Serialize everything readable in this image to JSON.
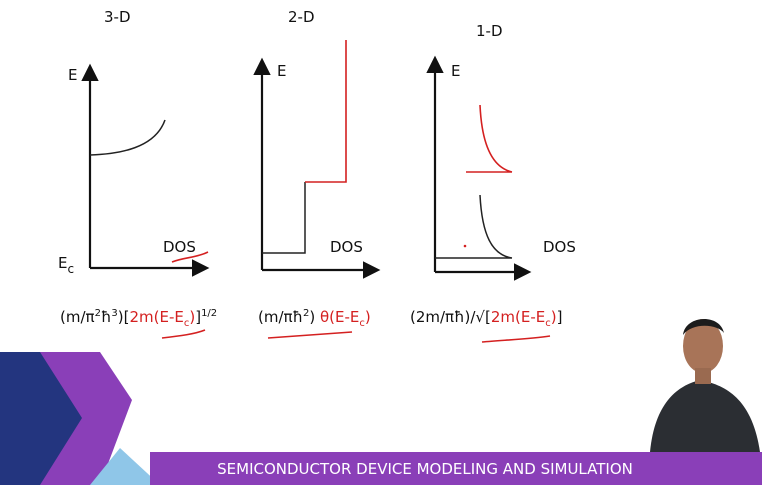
{
  "panels": [
    {
      "title": "3-D",
      "y_label": "E",
      "origin_label": {
        "main": "E",
        "sub": "c"
      },
      "x_label": "DOS",
      "formula": [
        {
          "text": "(m/π",
          "style": "black"
        },
        {
          "text": "2",
          "style": "sup"
        },
        {
          "text": "ħ",
          "style": "black"
        },
        {
          "text": "3",
          "style": "sup"
        },
        {
          "text": ")[",
          "style": "black"
        },
        {
          "text": "2m(E-E",
          "style": "red"
        },
        {
          "text": "c",
          "style": "red-sub"
        },
        {
          "text": ")",
          "style": "red"
        },
        {
          "text": "]",
          "style": "black"
        },
        {
          "text": "1/2",
          "style": "sup"
        }
      ]
    },
    {
      "title": "2-D",
      "y_label": "E",
      "x_label": "DOS",
      "formula": [
        {
          "text": "(m/πħ",
          "style": "black"
        },
        {
          "text": "2",
          "style": "sup"
        },
        {
          "text": ") ",
          "style": "black"
        },
        {
          "text": "θ(E-E",
          "style": "red"
        },
        {
          "text": "c",
          "style": "red-sub"
        },
        {
          "text": ")",
          "style": "red"
        }
      ]
    },
    {
      "title": "1-D",
      "y_label": "E",
      "x_label": "DOS",
      "formula": [
        {
          "text": "(2m/πħ)/√[",
          "style": "black"
        },
        {
          "text": "2m(E-E",
          "style": "red"
        },
        {
          "text": "c",
          "style": "red-sub"
        },
        {
          "text": ")",
          "style": "red"
        },
        {
          "text": "]",
          "style": "black"
        }
      ]
    }
  ],
  "footer": "SEMICONDUCTOR DEVICE MODELING AND SIMULATION"
}
